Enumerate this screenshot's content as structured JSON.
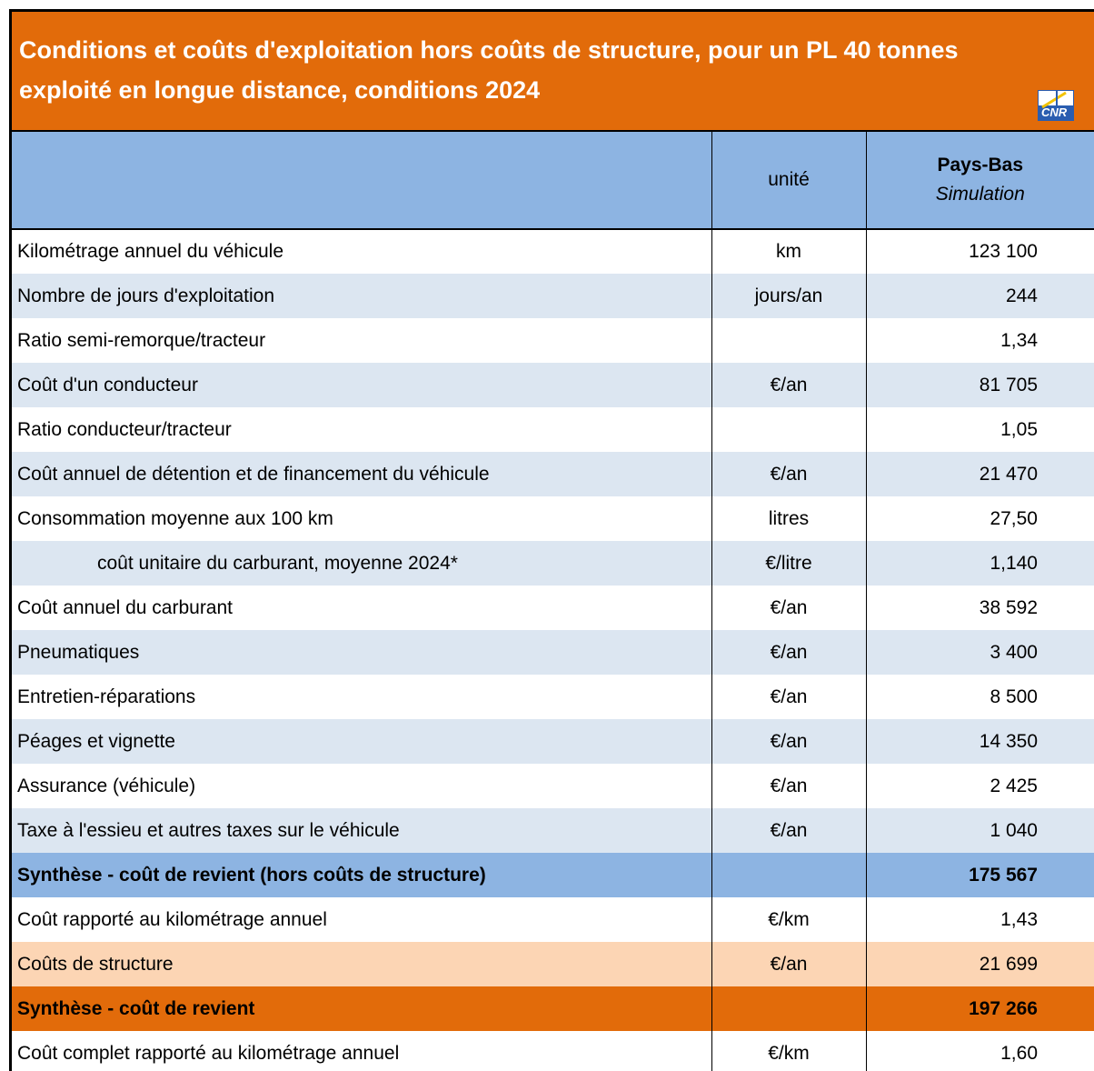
{
  "header": {
    "title_lines": [
      "Conditions et coûts d'exploitation hors coûts de structure, pour un PL 40 tonnes",
      "exploité en longue distance, conditions  2024"
    ],
    "logo": "CNR"
  },
  "table": {
    "columns": {
      "unit": "unité",
      "country": "Pays-Bas",
      "scenario": "Simulation"
    },
    "rows": [
      [
        "Kilométrage annuel du véhicule",
        "km",
        "123 100"
      ],
      [
        "Nombre de jours d'exploitation",
        "jours/an",
        "244"
      ],
      [
        "Ratio semi-remorque/tracteur",
        null,
        "1,34"
      ],
      [
        "Coût d'un conducteur",
        "€/an",
        "81 705"
      ],
      [
        "Ratio conducteur/tracteur",
        null,
        "1,05"
      ],
      [
        "Coût annuel de détention et de financement du véhicule",
        "€/an",
        "21 470"
      ],
      [
        "Consommation moyenne aux 100 km",
        "litres",
        "27,50"
      ],
      [
        "coût unitaire du carburant, moyenne 2024*",
        "€/litre",
        "1,140"
      ],
      [
        "Coût annuel du carburant",
        "€/an",
        "38 592"
      ],
      [
        "Pneumatiques",
        "€/an",
        "3 400"
      ],
      [
        "Entretien-réparations",
        "€/an",
        "8 500"
      ],
      [
        "Péages et vignette",
        "€/an",
        "14 350"
      ],
      [
        "Assurance (véhicule)",
        "€/an",
        "2 425"
      ],
      [
        "Taxe à l'essieu et autres taxes sur le véhicule",
        "€/an",
        "1 040"
      ],
      [
        "Synthèse - coût de revient (hors coûts de structure)",
        null,
        "175 567"
      ],
      [
        "Coût rapporté au kilométrage annuel",
        "€/km",
        "1,43"
      ],
      [
        "Coûts de structure",
        "€/an",
        "21 699"
      ],
      [
        "Synthèse - coût de revient",
        null,
        "197 266"
      ],
      [
        "Coût complet rapporté au kilométrage annuel",
        "€/km",
        "1,60"
      ]
    ]
  }
}
